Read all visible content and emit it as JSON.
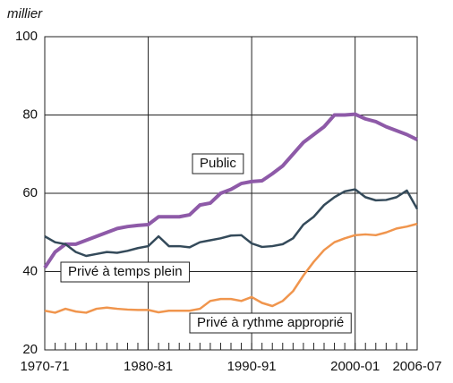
{
  "chart_data": {
    "type": "line",
    "unit": "millier",
    "categories": [
      "1970-71",
      null,
      null,
      null,
      null,
      null,
      null,
      null,
      null,
      null,
      "1980-81",
      null,
      null,
      null,
      null,
      null,
      null,
      null,
      null,
      null,
      "1990-91",
      null,
      null,
      null,
      null,
      null,
      null,
      null,
      null,
      null,
      "2000-01",
      null,
      null,
      null,
      null,
      null,
      "2006-07"
    ],
    "series": [
      {
        "name": "Public",
        "color": "#8e5aa8",
        "width": 4,
        "values": [
          41,
          45,
          47,
          47,
          48,
          49,
          50,
          51,
          51.5,
          51.8,
          52,
          54,
          54,
          54,
          54.5,
          57,
          57.5,
          60,
          61,
          62.5,
          63,
          63.2,
          65,
          67,
          70,
          73,
          75,
          77,
          80,
          80,
          80.2,
          79,
          78.3,
          77,
          76,
          75,
          73.7
        ]
      },
      {
        "name": "Privé à temps plein",
        "color": "#344a5a",
        "width": 2.5,
        "values": [
          49,
          47.5,
          47,
          45,
          44,
          44.5,
          45,
          44.8,
          45.3,
          46,
          46.5,
          49,
          46.5,
          46.5,
          46.2,
          47.5,
          48,
          48.5,
          49.2,
          49.3,
          47.2,
          46.3,
          46.5,
          47,
          48.5,
          52,
          54,
          57,
          59,
          60.5,
          61,
          59,
          58.2,
          58.3,
          59,
          60.7,
          56
        ]
      },
      {
        "name": "Privé à rythme approprié",
        "color": "#f0954d",
        "width": 2.5,
        "values": [
          30,
          29.5,
          30.5,
          29.8,
          29.5,
          30.5,
          30.8,
          30.5,
          30.3,
          30.2,
          30.2,
          29.6,
          30,
          30,
          30,
          30.5,
          32.5,
          33,
          33,
          32.5,
          33.5,
          32,
          31.2,
          32.5,
          35,
          39,
          42.5,
          45.5,
          47.5,
          48.5,
          49.3,
          49.5,
          49.3,
          50,
          51,
          51.5,
          52.2
        ]
      }
    ],
    "ylim": [
      20,
      100
    ],
    "yticks": [
      20,
      40,
      60,
      80,
      100
    ],
    "grid": true
  }
}
